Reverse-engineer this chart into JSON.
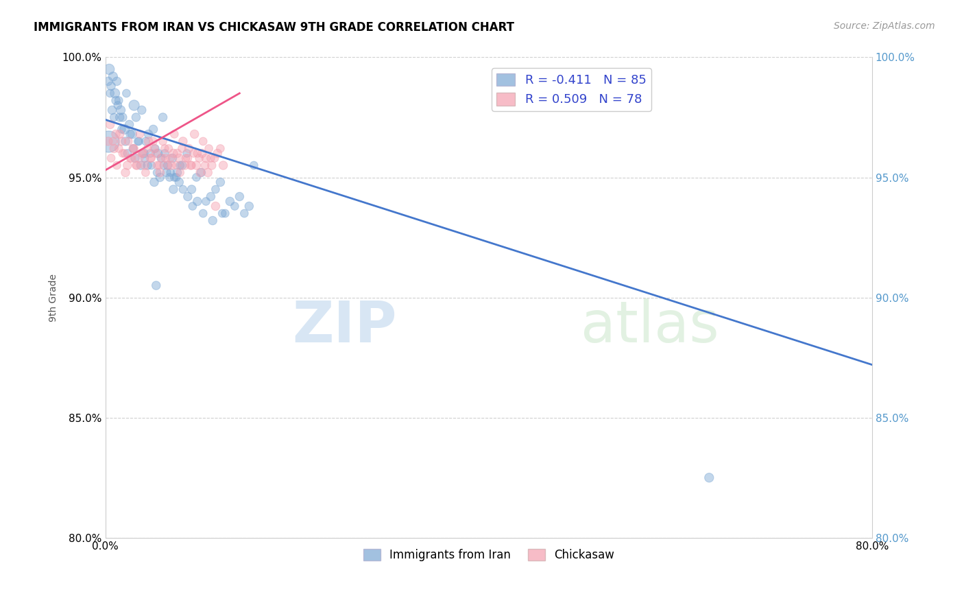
{
  "title": "IMMIGRANTS FROM IRAN VS CHICKASAW 9TH GRADE CORRELATION CHART",
  "source": "Source: ZipAtlas.com",
  "xlabel_legend_blue": "Immigrants from Iran",
  "xlabel_legend_pink": "Chickasaw",
  "ylabel": "9th Grade",
  "xlim": [
    0.0,
    80.0
  ],
  "ylim": [
    80.0,
    100.0
  ],
  "xticks": [
    0.0,
    80.0
  ],
  "xticks_minor": [
    10.0,
    20.0,
    30.0,
    40.0,
    50.0,
    60.0,
    70.0
  ],
  "yticks": [
    80.0,
    85.0,
    90.0,
    95.0,
    100.0
  ],
  "blue_R": -0.411,
  "blue_N": 85,
  "pink_R": 0.509,
  "pink_N": 78,
  "blue_color": "#7BA7D4",
  "pink_color": "#F4A0B0",
  "blue_line_color": "#4477CC",
  "pink_line_color": "#EE5588",
  "watermark_zip": "ZIP",
  "watermark_atlas": "atlas",
  "blue_line_x": [
    0.0,
    80.0
  ],
  "blue_line_y": [
    97.4,
    87.2
  ],
  "pink_line_x": [
    0.0,
    14.0
  ],
  "pink_line_y": [
    95.3,
    98.5
  ],
  "blue_scatter_x": [
    0.4,
    0.6,
    0.8,
    1.0,
    1.2,
    1.4,
    1.6,
    1.8,
    2.0,
    2.2,
    2.5,
    2.8,
    3.0,
    3.2,
    3.5,
    3.8,
    4.0,
    4.2,
    4.5,
    4.8,
    5.0,
    5.2,
    5.5,
    5.8,
    6.0,
    6.2,
    6.5,
    6.8,
    7.0,
    7.2,
    7.5,
    7.8,
    8.0,
    8.5,
    9.0,
    9.5,
    10.0,
    10.5,
    11.0,
    11.5,
    12.0,
    12.5,
    13.0,
    13.5,
    14.0,
    14.5,
    15.0,
    15.5,
    0.3,
    0.5,
    0.7,
    0.9,
    1.1,
    1.3,
    1.5,
    1.7,
    2.1,
    2.3,
    2.6,
    2.9,
    3.1,
    3.4,
    3.7,
    4.1,
    4.4,
    4.7,
    5.1,
    5.4,
    5.7,
    6.1,
    6.4,
    6.7,
    7.1,
    7.4,
    7.7,
    8.1,
    8.6,
    9.1,
    9.6,
    10.2,
    11.2,
    12.2,
    5.3,
    63.0
  ],
  "blue_scatter_y": [
    99.5,
    98.8,
    99.2,
    98.5,
    99.0,
    98.2,
    97.8,
    97.5,
    97.0,
    98.5,
    97.2,
    96.8,
    98.0,
    97.5,
    96.5,
    97.8,
    96.0,
    96.5,
    96.8,
    95.5,
    97.0,
    96.2,
    96.0,
    95.8,
    97.5,
    96.0,
    95.5,
    95.2,
    95.8,
    95.0,
    95.2,
    95.5,
    95.5,
    96.0,
    94.5,
    95.0,
    95.2,
    94.0,
    94.2,
    94.5,
    94.8,
    93.5,
    94.0,
    93.8,
    94.2,
    93.5,
    93.8,
    95.5,
    99.0,
    98.5,
    97.8,
    97.5,
    98.2,
    98.0,
    97.5,
    97.0,
    96.5,
    96.0,
    96.8,
    96.2,
    95.8,
    96.5,
    95.5,
    95.8,
    95.5,
    96.0,
    94.8,
    95.2,
    95.0,
    95.5,
    95.2,
    95.0,
    94.5,
    95.0,
    94.8,
    94.5,
    94.2,
    93.8,
    94.0,
    93.5,
    93.2,
    93.5,
    90.5,
    82.5
  ],
  "blue_scatter_sizes": [
    120,
    80,
    90,
    100,
    80,
    70,
    90,
    80,
    100,
    70,
    80,
    90,
    120,
    80,
    70,
    80,
    90,
    70,
    80,
    70,
    80,
    70,
    80,
    70,
    80,
    70,
    80,
    70,
    80,
    70,
    80,
    70,
    80,
    70,
    80,
    70,
    80,
    70,
    80,
    70,
    80,
    70,
    80,
    70,
    80,
    70,
    80,
    70,
    80,
    70,
    80,
    70,
    80,
    70,
    80,
    70,
    80,
    70,
    80,
    70,
    80,
    70,
    80,
    70,
    80,
    70,
    80,
    70,
    80,
    70,
    80,
    70,
    80,
    70,
    80,
    70,
    80,
    70,
    80,
    70,
    80,
    70,
    80,
    90
  ],
  "pink_scatter_x": [
    0.3,
    0.6,
    0.9,
    1.2,
    1.5,
    1.8,
    2.1,
    2.4,
    2.7,
    3.0,
    3.3,
    3.6,
    3.9,
    4.2,
    4.5,
    4.8,
    5.1,
    5.4,
    5.7,
    6.0,
    6.3,
    6.6,
    6.9,
    7.2,
    7.5,
    7.8,
    8.1,
    8.4,
    8.7,
    9.0,
    9.3,
    9.6,
    9.9,
    10.2,
    10.5,
    10.8,
    11.1,
    11.4,
    11.7,
    12.0,
    12.3,
    0.5,
    0.8,
    1.1,
    1.4,
    1.7,
    2.0,
    2.3,
    2.6,
    2.9,
    3.2,
    3.5,
    3.8,
    4.1,
    4.4,
    4.7,
    5.0,
    5.3,
    5.6,
    5.9,
    6.2,
    6.5,
    6.8,
    7.1,
    7.4,
    7.7,
    8.0,
    8.3,
    8.6,
    8.9,
    9.2,
    9.5,
    9.8,
    10.1,
    10.4,
    10.7,
    11.0,
    11.5
  ],
  "pink_scatter_y": [
    96.5,
    95.8,
    96.2,
    95.5,
    96.8,
    96.0,
    95.2,
    96.5,
    95.8,
    96.2,
    95.5,
    96.8,
    96.0,
    95.2,
    96.5,
    95.8,
    96.2,
    95.5,
    95.2,
    96.5,
    95.8,
    96.2,
    95.5,
    96.8,
    96.0,
    95.2,
    96.5,
    95.8,
    96.2,
    95.5,
    96.8,
    96.0,
    95.2,
    96.5,
    95.8,
    96.2,
    95.5,
    95.8,
    96.0,
    96.2,
    95.5,
    97.2,
    96.5,
    96.8,
    96.2,
    96.5,
    96.0,
    95.5,
    95.8,
    96.2,
    95.5,
    95.8,
    96.0,
    95.5,
    96.2,
    95.8,
    96.5,
    96.0,
    95.5,
    95.8,
    96.2,
    95.5,
    95.8,
    96.0,
    95.5,
    95.8,
    96.2,
    95.5,
    95.8,
    95.5,
    96.0,
    95.5,
    95.8,
    96.0,
    95.5,
    95.2,
    95.8,
    93.8
  ],
  "pink_scatter_sizes": [
    80,
    70,
    80,
    70,
    80,
    70,
    80,
    70,
    80,
    70,
    80,
    70,
    80,
    70,
    80,
    70,
    80,
    70,
    80,
    70,
    80,
    70,
    80,
    70,
    80,
    70,
    80,
    70,
    80,
    70,
    80,
    70,
    80,
    70,
    80,
    70,
    80,
    70,
    80,
    70,
    80,
    80,
    70,
    80,
    70,
    80,
    70,
    80,
    70,
    80,
    70,
    80,
    70,
    80,
    70,
    80,
    70,
    80,
    70,
    80,
    70,
    80,
    70,
    80,
    70,
    80,
    70,
    80,
    70,
    80,
    70,
    80,
    70,
    80,
    70,
    80,
    70,
    80
  ],
  "large_blue_x": 0.3,
  "large_blue_y": 96.5,
  "large_blue_size": 500,
  "grid_color": "#BBBBBB",
  "grid_style": "--",
  "title_fontsize": 12,
  "source_fontsize": 10,
  "tick_fontsize": 11,
  "ylabel_fontsize": 10
}
